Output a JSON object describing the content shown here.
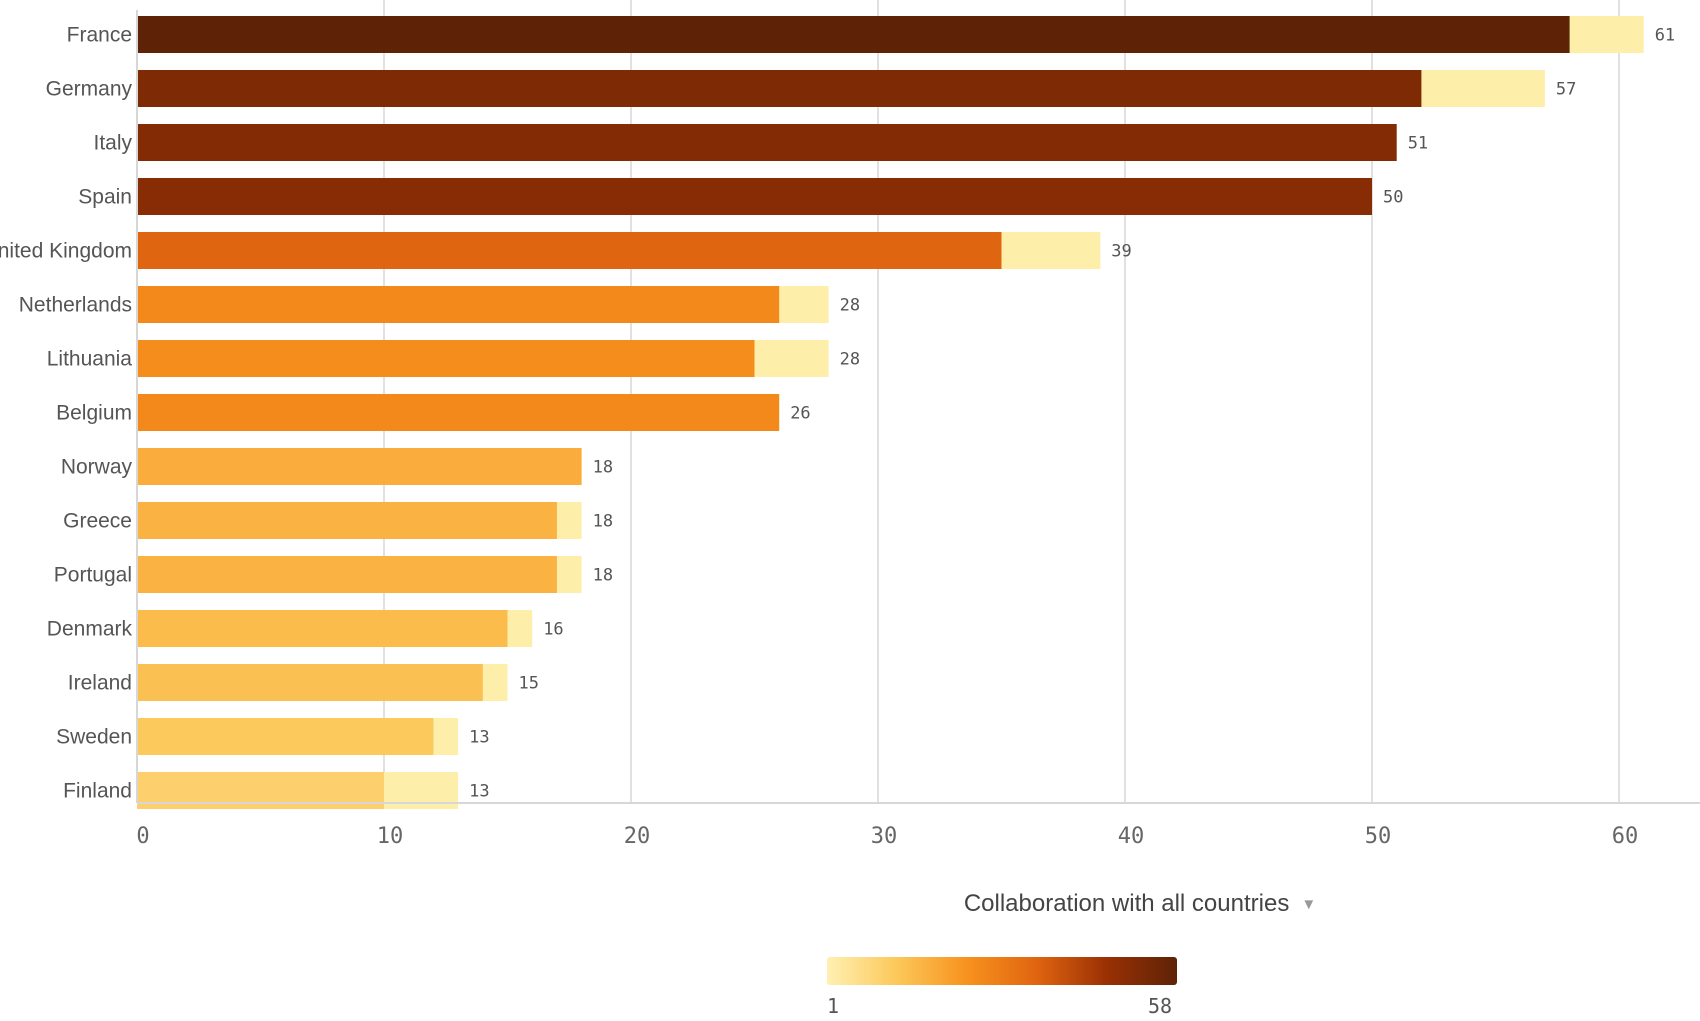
{
  "chart_data": {
    "type": "bar",
    "orientation": "horizontal",
    "title": "",
    "xlabel": "",
    "ylabel": "",
    "xlim": [
      0,
      62
    ],
    "x_ticks": [
      0,
      10,
      20,
      30,
      40,
      50,
      60
    ],
    "grid": true,
    "categories": [
      "France",
      "Germany",
      "Italy",
      "Spain",
      "United Kingdom",
      "Netherlands",
      "Lithuania",
      "Belgium",
      "Norway",
      "Greece",
      "Portugal",
      "Denmark",
      "Ireland",
      "Sweden",
      "Finland"
    ],
    "series": [
      {
        "values": [
          58,
          52,
          51,
          50,
          35,
          26,
          25,
          26,
          18,
          17,
          17,
          15,
          14,
          12,
          10
        ]
      },
      {
        "values": [
          61,
          57,
          51,
          50,
          39,
          28,
          28,
          26,
          18,
          18,
          18,
          16,
          15,
          13,
          13
        ]
      }
    ],
    "value_labels": [
      "61",
      "57",
      "51",
      "50",
      "39",
      "28",
      "28",
      "26",
      "18",
      "18",
      "18",
      "16",
      "15",
      "13",
      "13"
    ],
    "colors": {
      "total_bar": "#fdeeaa",
      "gradient": [
        "#fff0b3",
        "#fcc85a",
        "#f7921e",
        "#e06410",
        "#993004",
        "#5e2306"
      ],
      "grid": "#d7d7d7",
      "axis": "#d7d7d7"
    }
  },
  "legend": {
    "title": "Collaboration with all countries",
    "min_label": "1",
    "max_label": "58",
    "min_value": 1,
    "max_value": 58,
    "dropdown_icon": "caret-down-icon"
  }
}
